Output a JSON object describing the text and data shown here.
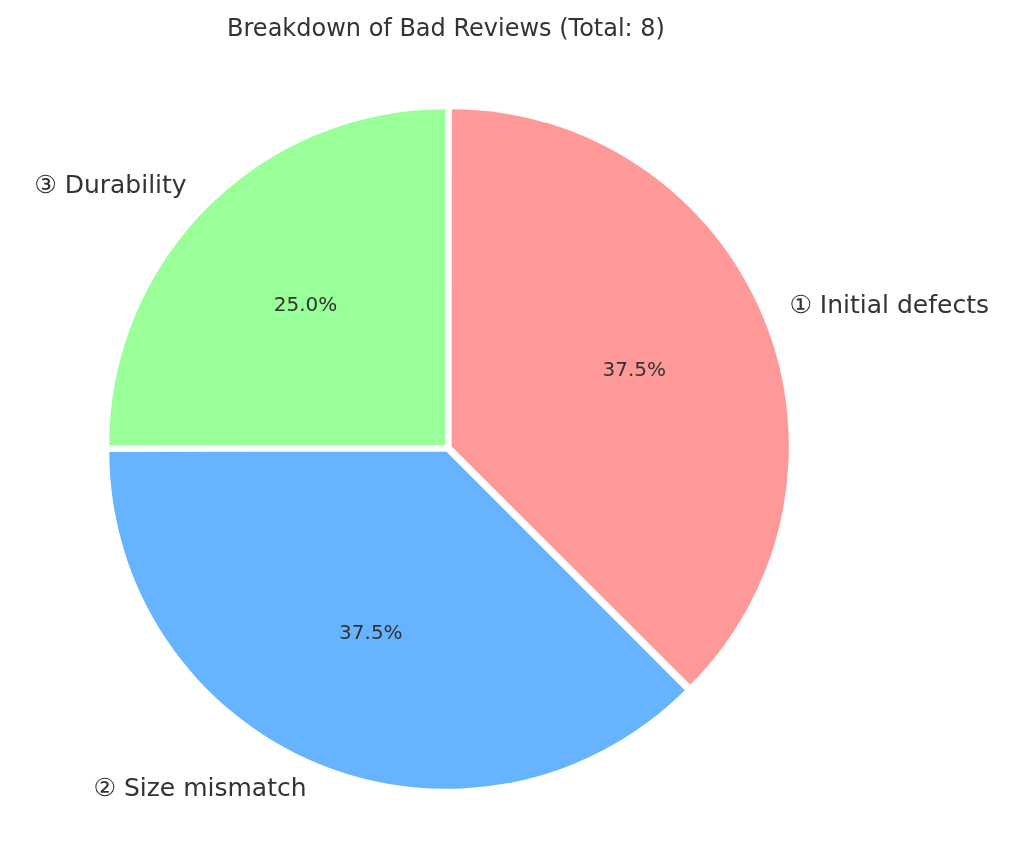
{
  "chart_data": {
    "type": "pie",
    "title": "Breakdown of Bad Reviews (Total: 8)",
    "categories": [
      "① Initial defects",
      "② Size mismatch",
      "③ Durability"
    ],
    "values": [
      37.5,
      37.5,
      25
    ],
    "colors": [
      "#ff9999",
      "#66b3ff",
      "#99ff99"
    ],
    "value_labels": [
      "37.5%",
      "37.5%",
      "25.0%"
    ],
    "legend": false
  }
}
